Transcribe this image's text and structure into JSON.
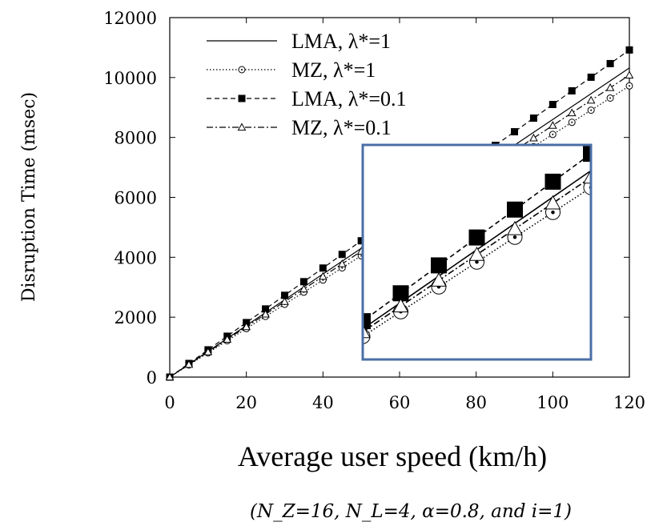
{
  "chart_data": {
    "type": "line",
    "title": "",
    "xlabel": "Average user speed (km/h)",
    "ylabel": "Disruption Time (msec)",
    "xlim": [
      0,
      120
    ],
    "ylim": [
      0,
      12000
    ],
    "xticks": [
      "0",
      "20",
      "40",
      "60",
      "80",
      "100",
      "120"
    ],
    "yticks": [
      "0",
      "2000",
      "4000",
      "6000",
      "8000",
      "10000",
      "12000"
    ],
    "legend_position": "top-left",
    "grid": false,
    "caption": "(N_Z=16, N_L=4, α=0.8, and i=1)",
    "inset": {
      "description": "zoomed view",
      "x_range": [
        50,
        110
      ],
      "border_color": "#4a6fa5"
    },
    "series": [
      {
        "name": "LMA, λ*=1",
        "style": "solid",
        "marker": "none",
        "color": "#000000",
        "x": [
          0,
          5,
          10,
          15,
          20,
          25,
          30,
          35,
          40,
          45,
          50,
          55,
          60,
          65,
          70,
          75,
          80,
          85,
          90,
          95,
          100,
          105,
          110,
          115,
          120
        ],
        "y": [
          0,
          430,
          860,
          1290,
          1720,
          2150,
          2580,
          3010,
          3440,
          3870,
          4300,
          4730,
          5160,
          5590,
          6020,
          6450,
          6880,
          7310,
          7740,
          8170,
          8600,
          9030,
          9460,
          9890,
          10320
        ]
      },
      {
        "name": "MZ, λ*=1",
        "style": "dotted",
        "marker": "circle",
        "color": "#000000",
        "x": [
          0,
          5,
          10,
          15,
          20,
          25,
          30,
          35,
          40,
          45,
          50,
          55,
          60,
          65,
          70,
          75,
          80,
          85,
          90,
          95,
          100,
          105,
          110,
          115,
          120
        ],
        "y": [
          0,
          405,
          810,
          1215,
          1620,
          2025,
          2430,
          2835,
          3240,
          3645,
          4050,
          4455,
          4860,
          5265,
          5670,
          6075,
          6480,
          6885,
          7290,
          7695,
          8100,
          8505,
          8910,
          9315,
          9720
        ]
      },
      {
        "name": "LMA, λ*=0.1",
        "style": "dashed",
        "marker": "filled-square",
        "color": "#000000",
        "x": [
          0,
          5,
          10,
          15,
          20,
          25,
          30,
          35,
          40,
          45,
          50,
          55,
          60,
          65,
          70,
          75,
          80,
          85,
          90,
          95,
          100,
          105,
          110,
          115,
          120
        ],
        "y": [
          0,
          455,
          910,
          1365,
          1820,
          2275,
          2730,
          3185,
          3640,
          4095,
          4550,
          5005,
          5460,
          5915,
          6370,
          6825,
          7280,
          7735,
          8190,
          8645,
          9100,
          9555,
          10010,
          10465,
          10920
        ]
      },
      {
        "name": "MZ, λ*=0.1",
        "style": "dash-dot",
        "marker": "triangle",
        "color": "#000000",
        "x": [
          0,
          5,
          10,
          15,
          20,
          25,
          30,
          35,
          40,
          45,
          50,
          55,
          60,
          65,
          70,
          75,
          80,
          85,
          90,
          95,
          100,
          105,
          110,
          115,
          120
        ],
        "y": [
          0,
          420,
          840,
          1260,
          1680,
          2100,
          2520,
          2940,
          3360,
          3780,
          4200,
          4620,
          5040,
          5460,
          5880,
          6300,
          6720,
          7140,
          7560,
          7980,
          8400,
          8820,
          9240,
          9660,
          10080
        ]
      }
    ]
  }
}
